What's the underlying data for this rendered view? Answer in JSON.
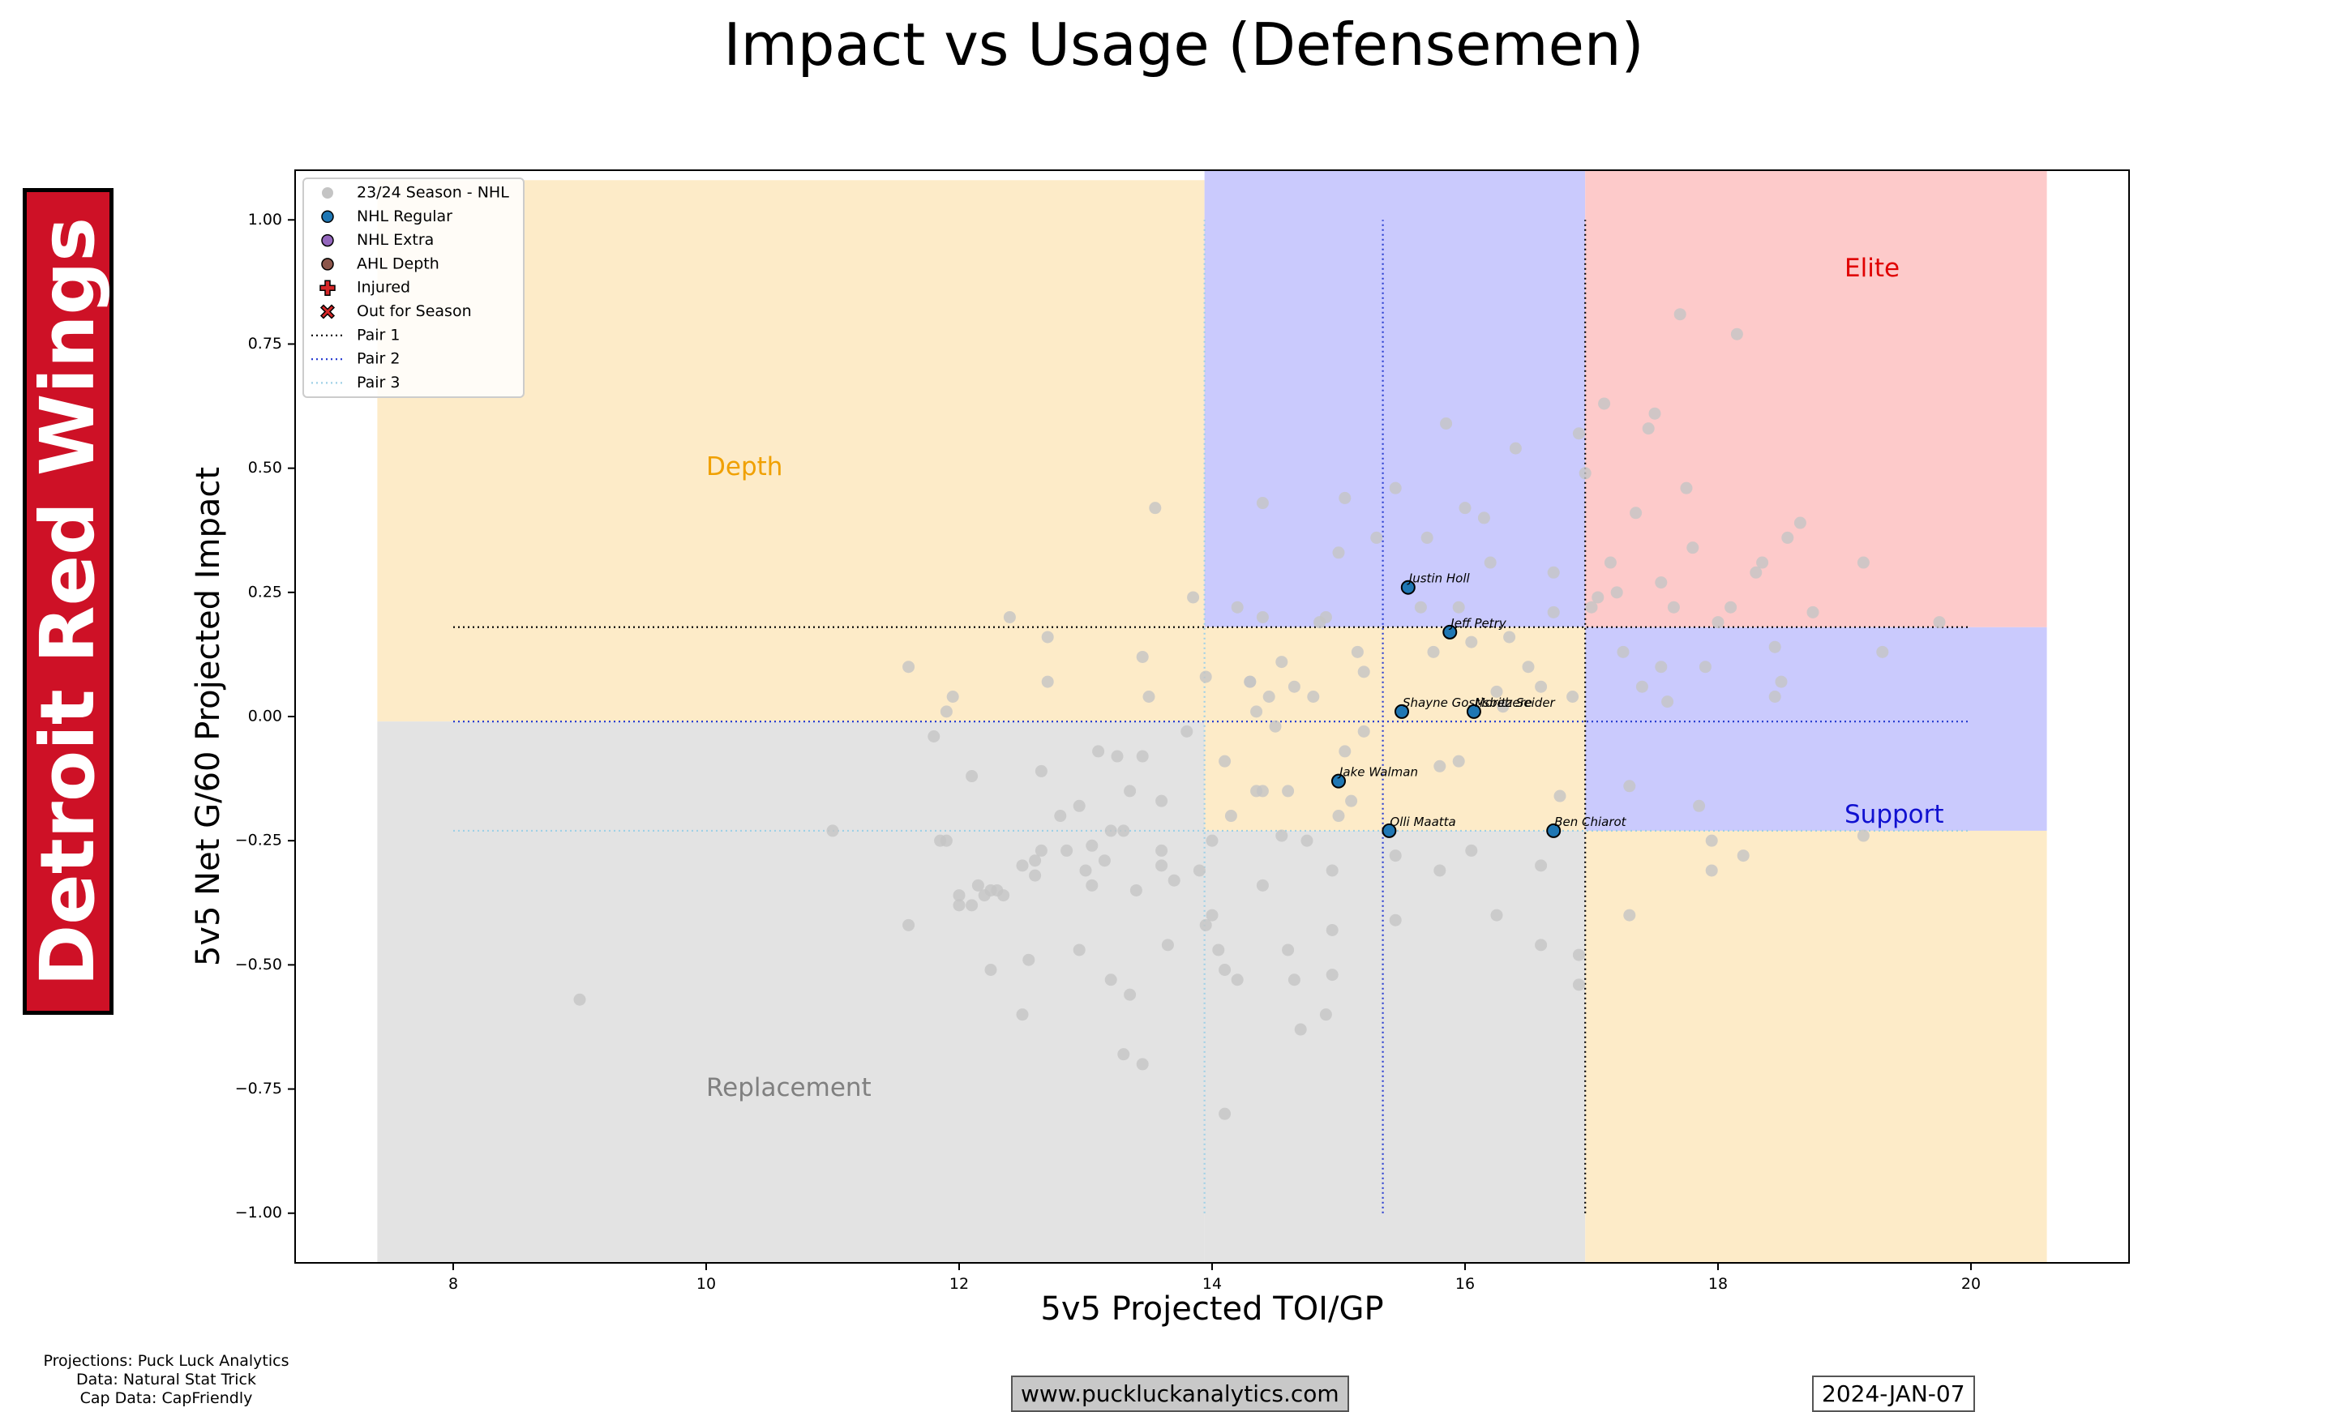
{
  "team": "Detroit Red Wings",
  "footer": {
    "credits": [
      "Projections: Puck Luck Analytics",
      "Data: Natural Stat Trick",
      "Cap Data: CapFriendly"
    ],
    "website": "www.puckluckanalytics.com",
    "date": "2024-JAN-07"
  },
  "chart_data": {
    "type": "scatter",
    "title": "Impact vs Usage (Defensemen)",
    "xlabel": "5v5 Projected TOI/GP",
    "ylabel": "5v5 Net G/60 Projected Impact",
    "xlim": [
      6.75,
      21.25
    ],
    "ylim": [
      -1.1,
      1.1
    ],
    "xticks": [
      8,
      10,
      12,
      14,
      16,
      18,
      20
    ],
    "yticks": [
      1.0,
      0.75,
      0.5,
      0.25,
      0.0,
      -0.25,
      -0.5,
      -0.75,
      -1.0
    ],
    "xtick_labels": [
      "8",
      "10",
      "12",
      "14",
      "16",
      "18",
      "20"
    ],
    "ytick_labels": [
      "1.00",
      "0.75",
      "0.50",
      "0.25",
      "0.00",
      "−0.25",
      "−0.50",
      "−0.75",
      "−1.00"
    ],
    "colors": {
      "depth": "#FDEBC8",
      "replacement": "#E3E3E3",
      "support": "#CACAFD",
      "elite": "#FDCACA",
      "league": "#C4C4C4",
      "regular": "#1F77B4",
      "pair1": "#000000",
      "pair2": "#2B3FD1",
      "pair3": "#9ED0E6"
    },
    "regions": [
      {
        "name": "Depth",
        "color": "#FDEBC8",
        "x": [
          7.4,
          13.94
        ],
        "y": [
          -0.01,
          1.08
        ]
      },
      {
        "name": "Replacement",
        "color": "#E3E3E3",
        "x": [
          7.4,
          13.94
        ],
        "y": [
          -1.1,
          -0.01
        ]
      },
      {
        "name": "Replacement",
        "color": "#E3E3E3",
        "x": [
          13.94,
          16.95
        ],
        "y": [
          -1.1,
          -0.23
        ]
      },
      {
        "name": "Support",
        "color": "#CACAFD",
        "x": [
          13.94,
          16.95
        ],
        "y": [
          0.18,
          1.1
        ]
      },
      {
        "name": "Support",
        "color": "#CACAFD",
        "x": [
          16.95,
          20.6
        ],
        "y": [
          -0.23,
          0.18
        ]
      },
      {
        "name": "Elite",
        "color": "#FDCACA",
        "x": [
          16.95,
          20.6
        ],
        "y": [
          0.18,
          1.1
        ]
      },
      {
        "name": "Depth",
        "color": "#FDEBC8",
        "x": [
          13.94,
          16.95
        ],
        "y": [
          -0.23,
          0.18
        ]
      },
      {
        "name": "Depth",
        "color": "#FDEBC8",
        "x": [
          16.95,
          20.6
        ],
        "y": [
          -1.1,
          -0.23
        ]
      }
    ],
    "region_labels": [
      {
        "text": "Depth",
        "x": 10.0,
        "y": 0.5,
        "color": "#F0A000"
      },
      {
        "text": "Replacement",
        "x": 10.0,
        "y": -0.75,
        "color": "#808080"
      },
      {
        "text": "Support",
        "x": 19.0,
        "y": -0.2,
        "color": "#1010D0"
      },
      {
        "text": "Elite",
        "x": 19.0,
        "y": 0.9,
        "color": "#E00000"
      }
    ],
    "pair_lines": [
      {
        "name": "Pair 1",
        "color": "#000000",
        "h": {
          "y": 0.18,
          "x": [
            8,
            20
          ]
        },
        "v": {
          "x": 16.95,
          "y": [
            -1.0,
            1.0
          ]
        }
      },
      {
        "name": "Pair 2",
        "color": "#2B3FD1",
        "h": {
          "y": -0.01,
          "x": [
            8,
            20
          ]
        },
        "v": {
          "x": 15.35,
          "y": [
            -1.0,
            1.0
          ]
        }
      },
      {
        "name": "Pair 3",
        "color": "#9ED0E6",
        "h": {
          "y": -0.23,
          "x": [
            8,
            20
          ]
        },
        "v": {
          "x": 13.94,
          "y": [
            -1.0,
            1.0
          ]
        }
      }
    ],
    "legend": {
      "position": "upper-left",
      "entries": [
        "23/24 Season - NHL",
        "NHL Regular",
        "NHL Extra",
        "AHL Depth",
        "Injured",
        "Out for Season",
        "Pair 1",
        "Pair 2",
        "Pair 3"
      ]
    },
    "players": [
      {
        "name": "Justin Holl",
        "x": 15.55,
        "y": 0.26
      },
      {
        "name": "Jeff Petry",
        "x": 15.88,
        "y": 0.17
      },
      {
        "name": "Shayne Gostisbehere",
        "x": 15.5,
        "y": 0.01
      },
      {
        "name": "Moritz Seider",
        "x": 16.07,
        "y": 0.01
      },
      {
        "name": "Jake Walman",
        "x": 15.0,
        "y": -0.13
      },
      {
        "name": "Olli Maatta",
        "x": 15.4,
        "y": -0.23
      },
      {
        "name": "Ben Chiarot",
        "x": 16.7,
        "y": -0.23
      }
    ],
    "league": [
      [
        9.0,
        -0.57
      ],
      [
        11.0,
        -0.23
      ],
      [
        11.6,
        -0.42
      ],
      [
        11.6,
        0.1
      ],
      [
        11.8,
        -0.04
      ],
      [
        11.85,
        -0.25
      ],
      [
        11.9,
        -0.25
      ],
      [
        11.9,
        0.01
      ],
      [
        11.95,
        0.04
      ],
      [
        12.0,
        -0.38
      ],
      [
        12.0,
        -0.36
      ],
      [
        12.1,
        -0.38
      ],
      [
        12.1,
        -0.12
      ],
      [
        12.15,
        -0.34
      ],
      [
        12.2,
        -0.36
      ],
      [
        12.25,
        -0.51
      ],
      [
        12.3,
        -0.35
      ],
      [
        12.35,
        -0.36
      ],
      [
        12.4,
        0.2
      ],
      [
        12.5,
        -0.3
      ],
      [
        12.5,
        -0.6
      ],
      [
        12.55,
        -0.49
      ],
      [
        12.6,
        -0.32
      ],
      [
        12.6,
        -0.29
      ],
      [
        12.65,
        -0.27
      ],
      [
        12.65,
        -0.11
      ],
      [
        12.7,
        0.16
      ],
      [
        12.8,
        -0.2
      ],
      [
        12.85,
        -0.27
      ],
      [
        12.95,
        -0.47
      ],
      [
        12.95,
        -0.18
      ],
      [
        13.0,
        -0.31
      ],
      [
        13.05,
        -0.26
      ],
      [
        13.05,
        -0.34
      ],
      [
        13.1,
        -0.07
      ],
      [
        13.15,
        -0.29
      ],
      [
        13.2,
        -0.23
      ],
      [
        13.2,
        -0.53
      ],
      [
        13.25,
        -0.08
      ],
      [
        13.3,
        -0.68
      ],
      [
        13.3,
        -0.23
      ],
      [
        13.35,
        -0.56
      ],
      [
        13.4,
        -0.35
      ],
      [
        13.45,
        -0.7
      ],
      [
        13.45,
        -0.08
      ],
      [
        13.5,
        0.04
      ],
      [
        13.55,
        0.42
      ],
      [
        13.6,
        -0.3
      ],
      [
        13.6,
        -0.27
      ],
      [
        13.6,
        -0.17
      ],
      [
        13.65,
        -0.46
      ],
      [
        13.7,
        -0.33
      ],
      [
        13.8,
        -0.03
      ],
      [
        13.85,
        0.24
      ],
      [
        13.9,
        -0.31
      ],
      [
        13.95,
        -0.42
      ],
      [
        14.0,
        -0.4
      ],
      [
        14.0,
        -0.25
      ],
      [
        14.05,
        -0.47
      ],
      [
        14.1,
        -0.8
      ],
      [
        14.1,
        -0.51
      ],
      [
        14.15,
        -0.2
      ],
      [
        14.2,
        -0.53
      ],
      [
        14.3,
        0.07
      ],
      [
        14.35,
        0.01
      ],
      [
        14.4,
        -0.15
      ],
      [
        14.45,
        0.04
      ],
      [
        14.5,
        -0.02
      ],
      [
        14.55,
        0.11
      ],
      [
        14.6,
        -0.47
      ],
      [
        14.65,
        -0.53
      ],
      [
        14.7,
        -0.63
      ],
      [
        14.8,
        0.04
      ],
      [
        14.85,
        0.19
      ],
      [
        14.9,
        -0.6
      ],
      [
        14.95,
        -0.52
      ],
      [
        14.95,
        -0.43
      ],
      [
        15.0,
        -0.2
      ],
      [
        15.0,
        0.33
      ],
      [
        15.05,
        0.44
      ],
      [
        15.1,
        -0.17
      ],
      [
        15.2,
        -0.03
      ],
      [
        15.3,
        0.36
      ],
      [
        15.45,
        0.46
      ],
      [
        15.45,
        -0.41
      ],
      [
        15.65,
        0.22
      ],
      [
        15.7,
        0.36
      ],
      [
        15.75,
        0.13
      ],
      [
        15.8,
        -0.31
      ],
      [
        15.85,
        0.59
      ],
      [
        15.95,
        0.22
      ],
      [
        16.0,
        0.42
      ],
      [
        16.05,
        0.15
      ],
      [
        16.15,
        0.4
      ],
      [
        16.2,
        0.31
      ],
      [
        16.25,
        0.05
      ],
      [
        16.3,
        0.02
      ],
      [
        16.35,
        0.16
      ],
      [
        16.4,
        0.54
      ],
      [
        16.5,
        0.1
      ],
      [
        16.6,
        -0.46
      ],
      [
        16.6,
        -0.3
      ],
      [
        16.7,
        0.29
      ],
      [
        16.75,
        -0.16
      ],
      [
        16.85,
        0.04
      ],
      [
        16.9,
        0.57
      ],
      [
        16.95,
        0.49
      ],
      [
        17.05,
        0.24
      ],
      [
        17.1,
        0.63
      ],
      [
        17.15,
        0.31
      ],
      [
        17.2,
        0.25
      ],
      [
        17.25,
        0.13
      ],
      [
        17.3,
        -0.14
      ],
      [
        17.35,
        0.41
      ],
      [
        17.4,
        0.06
      ],
      [
        17.45,
        0.58
      ],
      [
        17.5,
        0.61
      ],
      [
        17.55,
        0.27
      ],
      [
        17.6,
        0.03
      ],
      [
        17.65,
        0.22
      ],
      [
        17.7,
        0.81
      ],
      [
        17.75,
        0.46
      ],
      [
        17.8,
        0.34
      ],
      [
        17.85,
        -0.18
      ],
      [
        17.95,
        -0.25
      ],
      [
        18.0,
        0.19
      ],
      [
        18.1,
        0.22
      ],
      [
        18.15,
        0.77
      ],
      [
        18.2,
        -0.28
      ],
      [
        18.3,
        0.29
      ],
      [
        18.35,
        0.31
      ],
      [
        18.45,
        0.14
      ],
      [
        18.5,
        0.07
      ],
      [
        18.55,
        0.36
      ],
      [
        18.65,
        0.39
      ],
      [
        18.75,
        0.21
      ],
      [
        19.15,
        0.31
      ],
      [
        19.3,
        0.13
      ],
      [
        19.75,
        0.19
      ],
      [
        19.15,
        -0.24
      ],
      [
        17.95,
        -0.31
      ],
      [
        17.3,
        -0.4
      ],
      [
        16.25,
        -0.4
      ],
      [
        16.9,
        -0.48
      ],
      [
        16.9,
        -0.54
      ],
      [
        15.45,
        -0.28
      ],
      [
        14.95,
        -0.31
      ],
      [
        14.55,
        -0.24
      ],
      [
        14.35,
        -0.15
      ],
      [
        13.95,
        0.08
      ],
      [
        13.45,
        0.12
      ],
      [
        12.7,
        0.07
      ],
      [
        14.4,
        0.43
      ],
      [
        14.2,
        0.22
      ],
      [
        14.4,
        0.2
      ],
      [
        14.9,
        0.2
      ],
      [
        15.2,
        0.09
      ],
      [
        15.05,
        -0.07
      ],
      [
        14.6,
        -0.15
      ],
      [
        14.3,
        0.07
      ],
      [
        14.1,
        -0.09
      ],
      [
        14.65,
        0.06
      ],
      [
        14.75,
        -0.25
      ],
      [
        15.15,
        0.13
      ],
      [
        15.95,
        -0.09
      ],
      [
        16.05,
        -0.27
      ],
      [
        16.7,
        0.21
      ],
      [
        17.55,
        0.1
      ],
      [
        18.45,
        0.04
      ],
      [
        16.6,
        0.06
      ],
      [
        17.0,
        0.22
      ],
      [
        17.9,
        0.1
      ],
      [
        15.8,
        -0.1
      ],
      [
        14.4,
        -0.34
      ],
      [
        13.35,
        -0.15
      ],
      [
        12.25,
        -0.35
      ]
    ]
  }
}
